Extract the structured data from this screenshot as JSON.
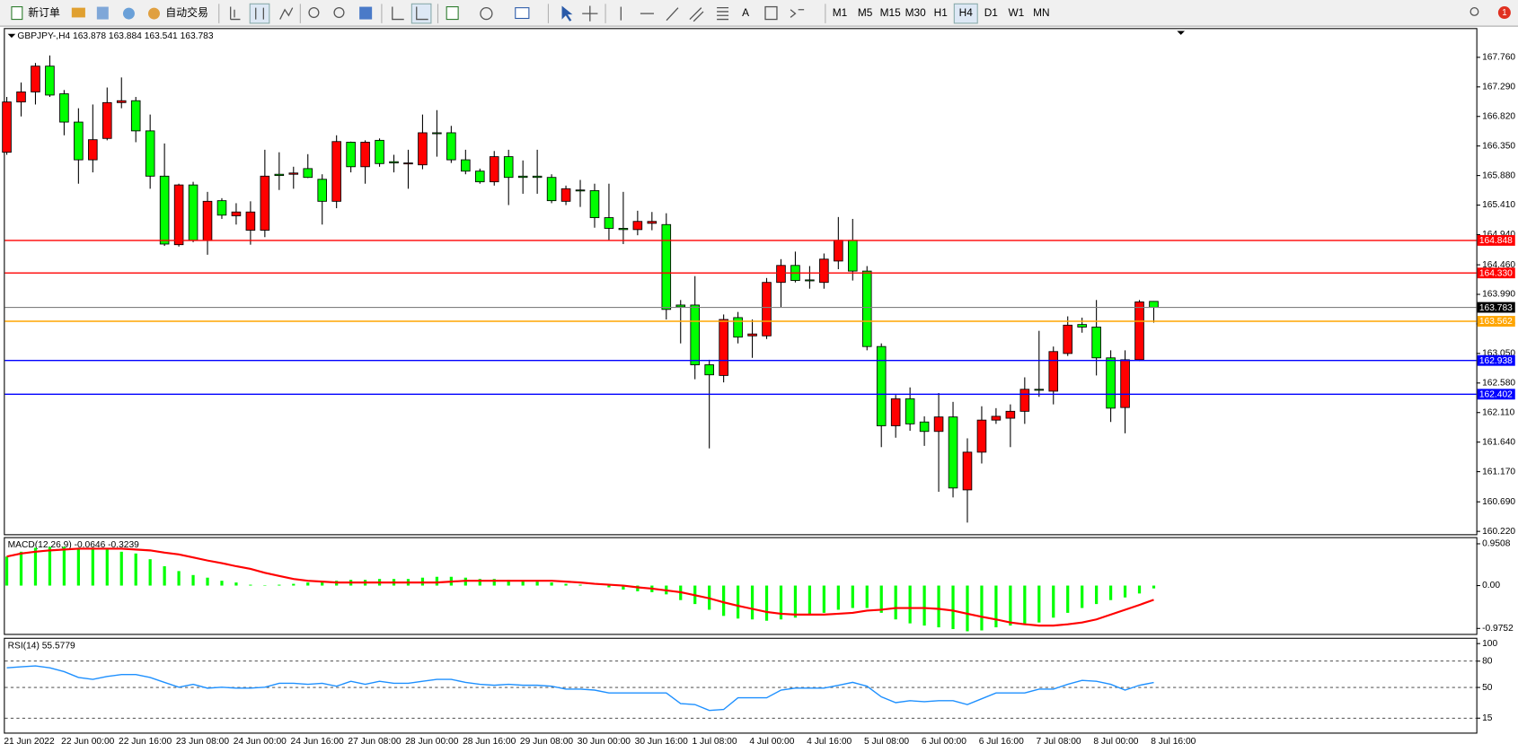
{
  "toolbar": {
    "new_order": "新订单",
    "auto_trading": "自动交易",
    "timeframes": [
      "M1",
      "M5",
      "M15",
      "M30",
      "H1",
      "H4",
      "D1",
      "W1",
      "MN"
    ],
    "badge": "1"
  },
  "chart_data": [
    {
      "type": "candlestick",
      "title": "GBPJPY-,H4",
      "categories": [
        "21 Jun 2022",
        null,
        null,
        null,
        "22 Jun 00:00",
        null,
        null,
        null,
        "22 Jun 16:00",
        null,
        null,
        null,
        "23 Jun 08:00",
        null,
        null,
        null,
        "24 Jun 00:00",
        null,
        null,
        null,
        "24 Jun 16:00",
        null,
        null,
        null,
        "27 Jun 08:00",
        null,
        null,
        null,
        "28 Jun 00:00",
        null,
        null,
        null,
        "28 Jun 16:00",
        null,
        null,
        null,
        "29 Jun 08:00",
        null,
        null,
        null,
        "30 Jun 00:00",
        null,
        null,
        null,
        "30 Jun 16:00",
        null,
        null,
        null,
        "1 Jul 08:00",
        null,
        null,
        null,
        "4 Jul 00:00",
        null,
        null,
        null,
        "4 Jul 16:00",
        null,
        null,
        null,
        "5 Jul 08:00",
        null,
        null,
        null,
        "6 Jul 00:00",
        null,
        null,
        null,
        "6 Jul 16:00",
        null,
        null,
        null,
        "7 Jul 08:00",
        null,
        null,
        null,
        "8 Jul 00:00",
        null,
        null,
        null,
        "8 Jul 16:00"
      ],
      "open": [
        166.25,
        167.05,
        167.21,
        167.62,
        167.18,
        166.73,
        166.13,
        166.47,
        167.04,
        167.07,
        166.59,
        165.87,
        164.78,
        165.73,
        164.85,
        165.48,
        165.24,
        165.01,
        165.01,
        165.9,
        165.9,
        165.99,
        165.82,
        165.47,
        166.41,
        166.02,
        166.44,
        166.1,
        166.07,
        166.05,
        166.56,
        166.56,
        166.13,
        165.95,
        165.78,
        166.18,
        165.87,
        165.87,
        165.85,
        165.47,
        165.65,
        165.64,
        165.21,
        165.04,
        165.02,
        165.12,
        165.1,
        163.82,
        163.82,
        162.87,
        162.7,
        163.62,
        163.33,
        163.33,
        164.18,
        164.45,
        164.22,
        164.18,
        164.52,
        164.85,
        164.36,
        163.16,
        161.9,
        162.33,
        161.96,
        161.81,
        162.04,
        160.88,
        161.48,
        161.99,
        162.02,
        162.13,
        162.48,
        162.45,
        163.05,
        163.51,
        163.47,
        162.98,
        162.19,
        162.95,
        163.878
      ],
      "high": [
        167.13,
        167.36,
        167.67,
        167.79,
        167.24,
        166.95,
        167.01,
        167.28,
        167.44,
        167.13,
        166.85,
        166.39,
        165.75,
        165.78,
        165.62,
        165.52,
        165.44,
        165.47,
        166.29,
        166.25,
        166.02,
        166.22,
        165.9,
        166.52,
        166.42,
        166.44,
        166.47,
        166.21,
        166.29,
        166.85,
        166.92,
        166.67,
        166.29,
        165.99,
        166.27,
        166.29,
        166.12,
        166.29,
        165.9,
        165.72,
        165.81,
        165.75,
        165.75,
        165.62,
        165.32,
        165.3,
        165.28,
        163.9,
        164.28,
        162.95,
        163.67,
        163.71,
        163.59,
        164.25,
        164.55,
        164.67,
        164.44,
        164.64,
        165.22,
        165.19,
        164.44,
        163.21,
        162.39,
        162.51,
        162.05,
        162.42,
        162.28,
        161.7,
        162.21,
        162.18,
        162.24,
        162.67,
        163.41,
        163.16,
        163.64,
        163.62,
        163.9,
        163.1,
        163.1,
        163.9,
        163.884
      ],
      "low": [
        166.21,
        166.82,
        167.01,
        167.13,
        166.52,
        165.75,
        165.93,
        166.44,
        166.95,
        166.41,
        165.67,
        164.76,
        164.75,
        164.82,
        164.62,
        165.19,
        165.1,
        164.78,
        164.9,
        165.65,
        165.67,
        165.84,
        165.1,
        165.36,
        165.93,
        165.75,
        166.02,
        165.93,
        165.67,
        165.98,
        166.18,
        166.08,
        165.9,
        165.75,
        165.72,
        165.41,
        165.59,
        165.59,
        165.44,
        165.41,
        165.38,
        165.05,
        164.85,
        164.79,
        164.93,
        165.01,
        163.59,
        163.21,
        162.64,
        161.54,
        162.59,
        163.21,
        162.98,
        163.28,
        163.78,
        164.18,
        164.08,
        164.08,
        164.39,
        164.21,
        163.1,
        161.56,
        161.71,
        161.82,
        161.58,
        160.85,
        160.76,
        160.36,
        161.3,
        161.93,
        161.56,
        161.93,
        162.36,
        162.24,
        163.01,
        163.38,
        162.7,
        161.96,
        161.78,
        162.93,
        163.541
      ],
      "close": [
        167.05,
        167.21,
        167.62,
        167.16,
        166.73,
        166.13,
        166.45,
        167.04,
        167.07,
        166.59,
        165.87,
        164.79,
        165.73,
        164.85,
        165.47,
        165.25,
        165.3,
        165.3,
        165.87,
        165.88,
        165.92,
        165.85,
        165.47,
        166.42,
        166.02,
        166.41,
        166.07,
        166.08,
        166.08,
        166.56,
        166.55,
        166.13,
        165.95,
        165.78,
        166.18,
        165.85,
        165.85,
        165.85,
        165.48,
        165.67,
        165.64,
        165.21,
        165.04,
        165.02,
        165.15,
        165.15,
        163.75,
        163.79,
        162.87,
        162.71,
        163.59,
        163.31,
        163.36,
        164.18,
        164.45,
        164.21,
        164.21,
        164.55,
        164.85,
        164.36,
        163.16,
        161.9,
        162.33,
        161.93,
        161.81,
        162.04,
        160.91,
        161.48,
        161.99,
        162.05,
        162.13,
        162.48,
        162.47,
        163.08,
        163.5,
        163.47,
        162.98,
        162.18,
        162.95,
        163.87,
        163.783
      ],
      "up_color": "#ff0000",
      "down_color": "#00ff00",
      "ylim": [
        160.19,
        168.21
      ],
      "yticks": [
        {
          "value": 167.76,
          "label": "167.760"
        },
        {
          "value": 167.29,
          "label": "167.290"
        },
        {
          "value": 166.82,
          "label": "166.820"
        },
        {
          "value": 166.35,
          "label": "166.350"
        },
        {
          "value": 165.88,
          "label": "165.880"
        },
        {
          "value": 165.41,
          "label": "165.410"
        },
        {
          "value": 164.94,
          "label": "164.940"
        },
        {
          "value": 164.46,
          "label": "164.460"
        },
        {
          "value": 163.99,
          "label": "163.990"
        },
        {
          "value": 163.52,
          "label": "163.520"
        },
        {
          "value": 163.05,
          "label": "163.050"
        },
        {
          "value": 162.58,
          "label": "162.580"
        },
        {
          "value": 162.11,
          "label": "162.110"
        },
        {
          "value": 161.64,
          "label": "161.640"
        },
        {
          "value": 161.17,
          "label": "161.170"
        },
        {
          "value": 160.69,
          "label": "160.690"
        },
        {
          "value": 160.22,
          "label": "160.220"
        }
      ],
      "hlines": [
        {
          "value": 164.848,
          "color": "#ff0000"
        },
        {
          "value": 164.33,
          "label": "164.330",
          "color": "#ff0000"
        },
        {
          "value": 163.562,
          "color": "#ffa500"
        },
        {
          "value": 162.938,
          "color": "#0000ff"
        },
        {
          "value": 162.402,
          "color": "#0000ff"
        }
      ]
    },
    {
      "type": "macd",
      "title": "MACD(12,26,9)",
      "histogram": [
        0.66,
        0.77,
        0.86,
        0.88,
        0.88,
        0.86,
        0.86,
        0.84,
        0.77,
        0.73,
        0.6,
        0.44,
        0.33,
        0.24,
        0.18,
        0.11,
        0.07,
        0.02,
        0.01,
        0.02,
        0.04,
        0.07,
        0.09,
        0.11,
        0.13,
        0.13,
        0.15,
        0.15,
        0.15,
        0.18,
        0.2,
        0.2,
        0.18,
        0.15,
        0.15,
        0.13,
        0.11,
        0.09,
        0.07,
        0.04,
        0.02,
        0,
        -0.04,
        -0.09,
        -0.13,
        -0.15,
        -0.2,
        -0.33,
        -0.42,
        -0.55,
        -0.69,
        -0.75,
        -0.77,
        -0.8,
        -0.77,
        -0.73,
        -0.66,
        -0.62,
        -0.55,
        -0.51,
        -0.51,
        -0.62,
        -0.77,
        -0.86,
        -0.91,
        -0.95,
        -0.99,
        -1.04,
        -1.02,
        -0.95,
        -0.91,
        -0.88,
        -0.84,
        -0.73,
        -0.62,
        -0.51,
        -0.42,
        -0.33,
        -0.27,
        -0.18,
        -0.0646
      ],
      "signal": [
        0.66,
        0.73,
        0.77,
        0.8,
        0.82,
        0.84,
        0.84,
        0.84,
        0.84,
        0.82,
        0.8,
        0.75,
        0.71,
        0.64,
        0.57,
        0.51,
        0.44,
        0.38,
        0.29,
        0.22,
        0.15,
        0.11,
        0.09,
        0.07,
        0.07,
        0.07,
        0.07,
        0.07,
        0.07,
        0.07,
        0.07,
        0.09,
        0.11,
        0.11,
        0.11,
        0.11,
        0.11,
        0.11,
        0.11,
        0.09,
        0.07,
        0.04,
        0.02,
        0,
        -0.04,
        -0.07,
        -0.11,
        -0.15,
        -0.22,
        -0.29,
        -0.38,
        -0.46,
        -0.53,
        -0.6,
        -0.64,
        -0.66,
        -0.66,
        -0.66,
        -0.64,
        -0.62,
        -0.57,
        -0.55,
        -0.51,
        -0.51,
        -0.51,
        -0.53,
        -0.57,
        -0.64,
        -0.71,
        -0.77,
        -0.84,
        -0.88,
        -0.91,
        -0.91,
        -0.88,
        -0.84,
        -0.77,
        -0.66,
        -0.55,
        -0.44,
        -0.3239
      ],
      "histogram_color": "#00ff00",
      "signal_color": "#ff0000",
      "ylim": [
        -1.1,
        1.08
      ],
      "yticks": [
        0.9508,
        {
          "value": 0,
          "label": "0.00"
        },
        -0.9752
      ]
    },
    {
      "type": "line",
      "title": "RSI(14)",
      "values": [
        72.4,
        73.5,
        74.6,
        72.4,
        68.0,
        61.4,
        59.2,
        62.5,
        64.7,
        64.7,
        61.4,
        55.8,
        50.3,
        53.6,
        49.2,
        50.3,
        49.2,
        49.2,
        50.3,
        54.7,
        54.7,
        53.6,
        54.7,
        51.4,
        57.0,
        53.6,
        57.0,
        54.7,
        54.7,
        57.0,
        59.2,
        59.2,
        55.8,
        53.6,
        52.5,
        53.6,
        52.5,
        52.5,
        51.4,
        48.1,
        48.1,
        47.0,
        43.7,
        43.7,
        43.7,
        43.7,
        43.7,
        31.6,
        30.5,
        23.8,
        24.9,
        38.2,
        38.2,
        38.2,
        47.0,
        49.2,
        49.2,
        49.2,
        52.5,
        55.8,
        51.4,
        39.3,
        32.7,
        34.9,
        33.8,
        34.9,
        34.9,
        30.5,
        37.1,
        43.7,
        43.7,
        43.7,
        48.1,
        48.1,
        53.6,
        58.1,
        57.0,
        53.6,
        47.0,
        52.5,
        55.5779
      ],
      "color": "#1e90ff",
      "ylim": [
        -1.5,
        105.5
      ],
      "yticks": [
        100,
        80,
        50,
        15
      ],
      "levels": [
        80,
        50,
        15
      ]
    }
  ]
}
